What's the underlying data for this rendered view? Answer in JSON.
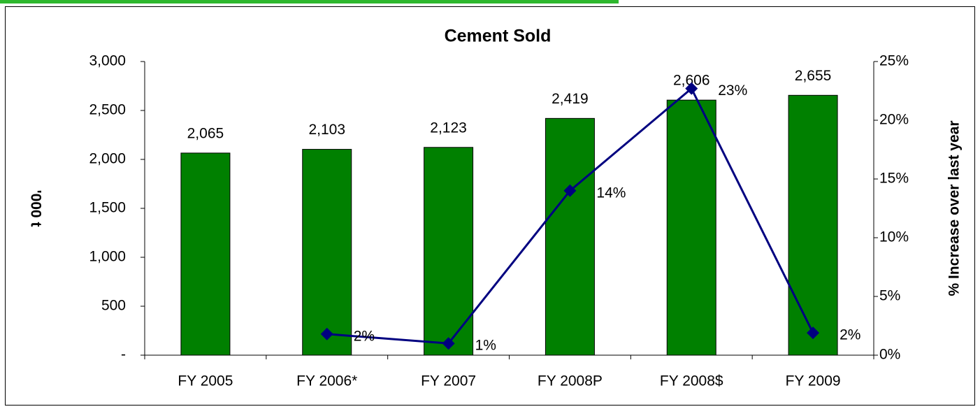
{
  "chart_data": {
    "type": "bar_line",
    "title": "Cement Sold",
    "y_label": "'000 t",
    "y2_label": "% Increase over last year",
    "categories": [
      "FY 2005",
      "FY 2006*",
      "FY 2007",
      "FY 2008P",
      "FY 2008$",
      "FY 2009"
    ],
    "series": [
      {
        "name": "Cement Sold",
        "type": "bar",
        "color": "#008000",
        "values": [
          2065,
          2103,
          2123,
          2419,
          2606,
          2655
        ],
        "value_labels": [
          "2,065",
          "2,103",
          "2,123",
          "2,419",
          "2,606",
          "2,655"
        ]
      },
      {
        "name": "% Increase over last year",
        "type": "line",
        "axis": "y2",
        "color": "#000080",
        "values": [
          null,
          1.8,
          1.0,
          14.0,
          22.7,
          1.9
        ],
        "value_labels": [
          null,
          "2%",
          "1%",
          "14%",
          "23%",
          "2%"
        ]
      }
    ],
    "ylim": [
      0,
      3000
    ],
    "yticks": [
      {
        "value": 0,
        "label": "-"
      },
      500,
      {
        "value": 1000,
        "label": "1,000"
      },
      {
        "value": 1500,
        "label": "1,500"
      },
      {
        "value": 2000,
        "label": "2,000"
      },
      {
        "value": 2500,
        "label": "2,500"
      },
      {
        "value": 3000,
        "label": "3,000"
      }
    ],
    "y2lim": [
      0,
      25
    ],
    "y2ticks": [
      {
        "value": 0,
        "label": "0%"
      },
      {
        "value": 5,
        "label": "5%"
      },
      {
        "value": 10,
        "label": "10%"
      },
      {
        "value": 15,
        "label": "15%"
      },
      {
        "value": 20,
        "label": "20%"
      },
      {
        "value": 25,
        "label": "25%"
      }
    ]
  }
}
